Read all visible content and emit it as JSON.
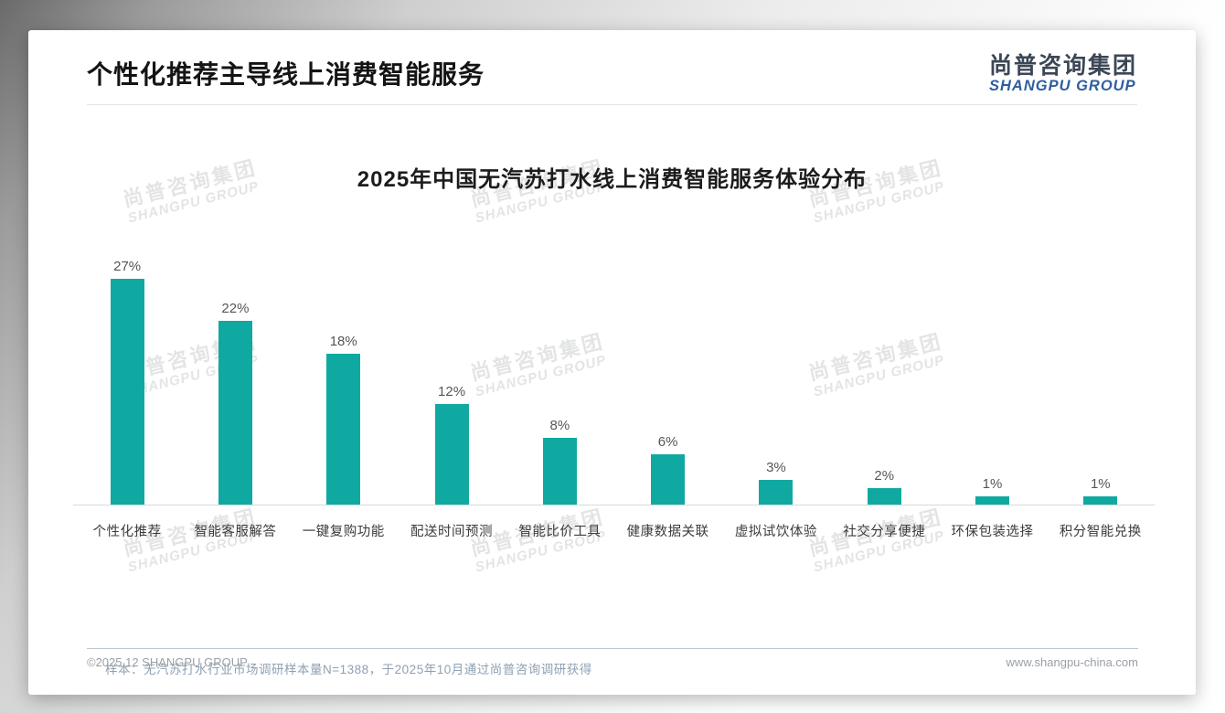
{
  "page": {
    "title": "个性化推荐主导线上消费智能服务",
    "logo": {
      "cn": "尚普咨询集团",
      "en": "SHANGPU GROUP"
    },
    "watermark": {
      "cn": "尚普咨询集团",
      "en": "SHANGPU GROUP"
    },
    "footnote": "样本：无汽苏打水行业市场调研样本量N=1388，于2025年10月通过尚普咨询调研获得",
    "footer": {
      "left": "©2025.12 SHANGPU GROUP",
      "right": "www.shangpu-china.com"
    }
  },
  "chart_data": {
    "type": "bar",
    "title": "2025年中国无汽苏打水线上消费智能服务体验分布",
    "categories": [
      "个性化推荐",
      "智能客服解答",
      "一键复购功能",
      "配送时间预测",
      "智能比价工具",
      "健康数据关联",
      "虚拟试饮体验",
      "社交分享便捷",
      "环保包装选择",
      "积分智能兑换"
    ],
    "values": [
      27,
      22,
      18,
      12,
      8,
      6,
      3,
      2,
      1,
      1
    ],
    "data_labels": [
      "27%",
      "22%",
      "18%",
      "12%",
      "8%",
      "6%",
      "3%",
      "2%",
      "1%",
      "1%"
    ],
    "unit": "%",
    "bar_color": "#10a9a1",
    "ylim": [
      0,
      30
    ],
    "xlabel": "",
    "ylabel": "",
    "grid": false,
    "legend": false
  }
}
